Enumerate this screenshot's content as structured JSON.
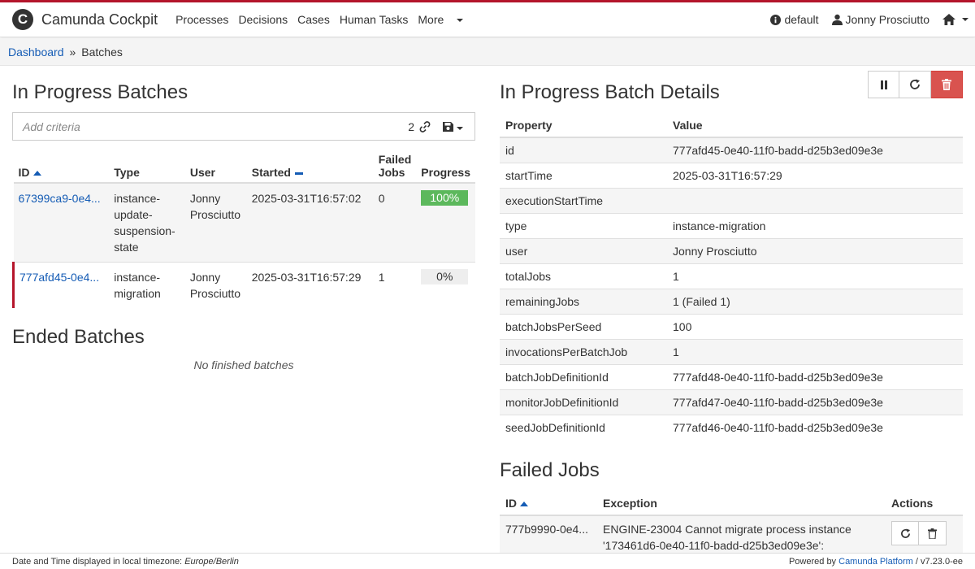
{
  "app": {
    "title": "Camunda Cockpit",
    "logo_letter": "C"
  },
  "nav": {
    "links": [
      "Processes",
      "Decisions",
      "Cases",
      "Human Tasks"
    ],
    "more": "More",
    "engine": "default",
    "user": "Jonny Prosciutto"
  },
  "breadcrumb": {
    "home": "Dashboard",
    "separator": "»",
    "current": "Batches"
  },
  "in_progress": {
    "title": "In Progress Batches",
    "search_placeholder": "Add criteria",
    "search_count": "2",
    "columns": {
      "id": "ID",
      "type": "Type",
      "user": "User",
      "started": "Started",
      "failed_jobs": "Failed Jobs",
      "progress": "Progress"
    },
    "rows": [
      {
        "id": "67399ca9-0e4...",
        "type": "instance-update-suspension-state",
        "user": "Jonny Prosciutto",
        "started": "2025-03-31T16:57:02",
        "failed": "0",
        "progress_label": "100%",
        "progress": 1.0
      },
      {
        "id": "777afd45-0e4...",
        "type": "instance-migration",
        "user": "Jonny Prosciutto",
        "started": "2025-03-31T16:57:29",
        "failed": "1",
        "progress_label": "0%",
        "progress": 0.0
      }
    ]
  },
  "ended": {
    "title": "Ended Batches",
    "empty": "No finished batches"
  },
  "details": {
    "title": "In Progress Batch Details",
    "col_property": "Property",
    "col_value": "Value",
    "rows": [
      {
        "k": "id",
        "v": "777afd45-0e40-11f0-badd-d25b3ed09e3e"
      },
      {
        "k": "startTime",
        "v": "2025-03-31T16:57:29"
      },
      {
        "k": "executionStartTime",
        "v": ""
      },
      {
        "k": "type",
        "v": "instance-migration"
      },
      {
        "k": "user",
        "v": "Jonny Prosciutto"
      },
      {
        "k": "totalJobs",
        "v": "1"
      },
      {
        "k": "remainingJobs",
        "v": "1 (Failed 1)"
      },
      {
        "k": "batchJobsPerSeed",
        "v": "100"
      },
      {
        "k": "invocationsPerBatchJob",
        "v": "1"
      },
      {
        "k": "batchJobDefinitionId",
        "v": "777afd48-0e40-11f0-badd-d25b3ed09e3e"
      },
      {
        "k": "monitorJobDefinitionId",
        "v": "777afd47-0e40-11f0-badd-d25b3ed09e3e"
      },
      {
        "k": "seedJobDefinitionId",
        "v": "777afd46-0e40-11f0-badd-d25b3ed09e3e"
      }
    ]
  },
  "failed_jobs": {
    "title": "Failed Jobs",
    "col_id": "ID",
    "col_exception": "Exception",
    "col_actions": "Actions",
    "rows": [
      {
        "id": "777b9990-0e4...",
        "exception": "ENGINE-23004 Cannot migrate process instance '173461d6-0e40-11f0-badd-d25b3ed09e3e':"
      }
    ]
  },
  "footer": {
    "tz_label": "Date and Time displayed in local timezone:",
    "tz": "Europe/Berlin",
    "powered": "Powered by",
    "platform": "Camunda Platform",
    "version": "/ v7.23.0-ee"
  },
  "colors": {
    "accent": "#b5152b",
    "link": "#155cb5",
    "success": "#5cb85c",
    "danger": "#d9534f"
  }
}
